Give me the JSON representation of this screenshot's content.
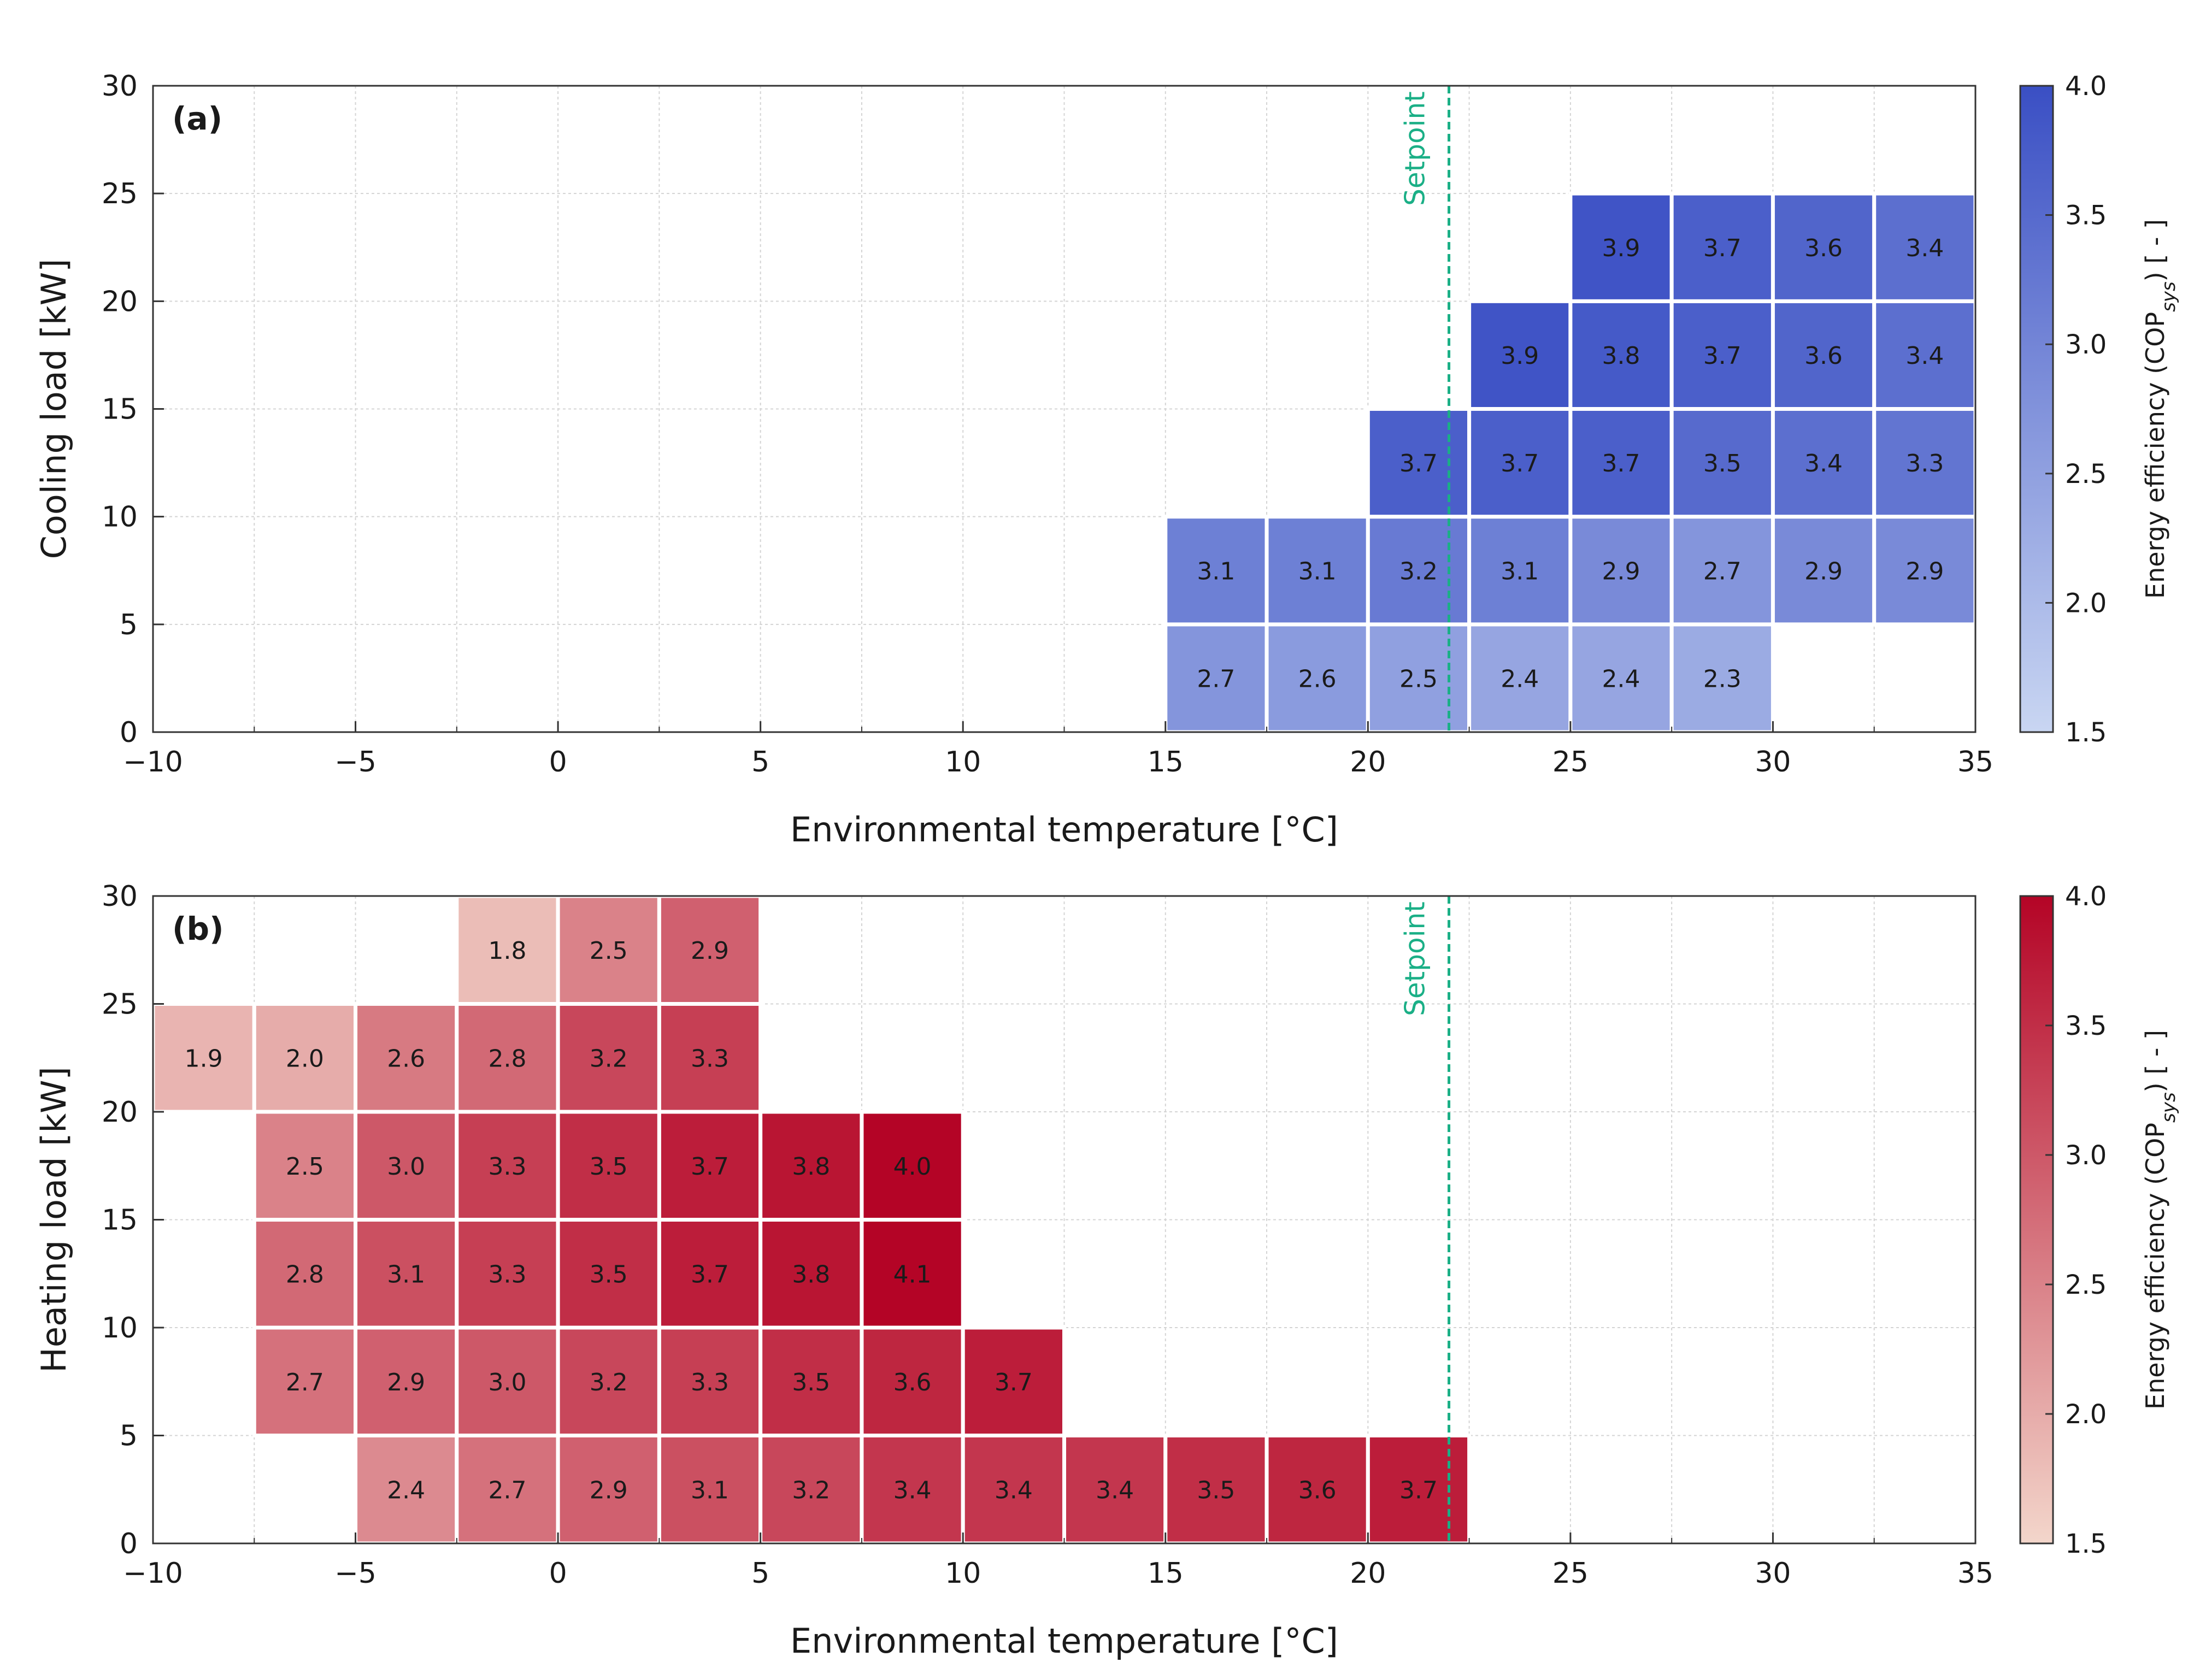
{
  "chart_data": [
    {
      "type": "heatmap",
      "panel_label": "(a)",
      "xlabel": "Environmental temperature [°C]",
      "ylabel": "Cooling load [kW]",
      "xlim": [
        -10,
        35
      ],
      "ylim": [
        0,
        30
      ],
      "xticks": [
        "−10",
        "−5",
        "0",
        "5",
        "10",
        "15",
        "20",
        "25",
        "30",
        "35"
      ],
      "yticks": [
        "0",
        "5",
        "10",
        "15",
        "20",
        "25",
        "30"
      ],
      "bin_width_x": 2.5,
      "bin_height_y": 5,
      "grid": true,
      "setpoint": {
        "x": 22,
        "label": "Setpoint",
        "color": "#1aaf86"
      },
      "colorbar": {
        "title_main": "Energy efficiency (COP",
        "title_sub": "sys",
        "title_end": ") [ - ]",
        "range": [
          1.5,
          4.0
        ],
        "ticks": [
          "1.5",
          "2.0",
          "2.5",
          "3.0",
          "3.5",
          "4.0"
        ],
        "color_low": "#c9d6f2",
        "color_high": "#3a4fc4"
      },
      "cells": [
        {
          "x0": 15,
          "y0": 0,
          "value": "2.7"
        },
        {
          "x0": 17.5,
          "y0": 0,
          "value": "2.6"
        },
        {
          "x0": 20,
          "y0": 0,
          "value": "2.5"
        },
        {
          "x0": 22.5,
          "y0": 0,
          "value": "2.4"
        },
        {
          "x0": 25,
          "y0": 0,
          "value": "2.4"
        },
        {
          "x0": 27.5,
          "y0": 0,
          "value": "2.3"
        },
        {
          "x0": 15,
          "y0": 5,
          "value": "3.1"
        },
        {
          "x0": 17.5,
          "y0": 5,
          "value": "3.1"
        },
        {
          "x0": 20,
          "y0": 5,
          "value": "3.2"
        },
        {
          "x0": 22.5,
          "y0": 5,
          "value": "3.1"
        },
        {
          "x0": 25,
          "y0": 5,
          "value": "2.9"
        },
        {
          "x0": 27.5,
          "y0": 5,
          "value": "2.7"
        },
        {
          "x0": 30,
          "y0": 5,
          "value": "2.9"
        },
        {
          "x0": 32.5,
          "y0": 5,
          "value": "2.9"
        },
        {
          "x0": 20,
          "y0": 10,
          "value": "3.7"
        },
        {
          "x0": 22.5,
          "y0": 10,
          "value": "3.7"
        },
        {
          "x0": 25,
          "y0": 10,
          "value": "3.7"
        },
        {
          "x0": 27.5,
          "y0": 10,
          "value": "3.5"
        },
        {
          "x0": 30,
          "y0": 10,
          "value": "3.4"
        },
        {
          "x0": 32.5,
          "y0": 10,
          "value": "3.3"
        },
        {
          "x0": 22.5,
          "y0": 15,
          "value": "3.9"
        },
        {
          "x0": 25,
          "y0": 15,
          "value": "3.8"
        },
        {
          "x0": 27.5,
          "y0": 15,
          "value": "3.7"
        },
        {
          "x0": 30,
          "y0": 15,
          "value": "3.6"
        },
        {
          "x0": 32.5,
          "y0": 15,
          "value": "3.4"
        },
        {
          "x0": 25,
          "y0": 20,
          "value": "3.9"
        },
        {
          "x0": 27.5,
          "y0": 20,
          "value": "3.7"
        },
        {
          "x0": 30,
          "y0": 20,
          "value": "3.6"
        },
        {
          "x0": 32.5,
          "y0": 20,
          "value": "3.4"
        }
      ]
    },
    {
      "type": "heatmap",
      "panel_label": "(b)",
      "xlabel": "Environmental temperature [°C]",
      "ylabel": "Heating load [kW]",
      "xlim": [
        -10,
        35
      ],
      "ylim": [
        0,
        30
      ],
      "xticks": [
        "−10",
        "−5",
        "0",
        "5",
        "10",
        "15",
        "20",
        "25",
        "30",
        "35"
      ],
      "yticks": [
        "0",
        "5",
        "10",
        "15",
        "20",
        "25",
        "30"
      ],
      "bin_width_x": 2.5,
      "bin_height_y": 5,
      "grid": true,
      "setpoint": {
        "x": 22,
        "label": "Setpoint",
        "color": "#1aaf86"
      },
      "colorbar": {
        "title_main": "Energy efficiency (COP",
        "title_sub": "sys",
        "title_end": ") [ - ]",
        "range": [
          1.5,
          4.0
        ],
        "ticks": [
          "1.5",
          "2.0",
          "2.5",
          "3.0",
          "3.5",
          "4.0"
        ],
        "color_low": "#f3d6cb",
        "color_high": "#b40426"
      },
      "cells": [
        {
          "x0": -5,
          "y0": 0,
          "value": "2.4"
        },
        {
          "x0": -2.5,
          "y0": 0,
          "value": "2.7"
        },
        {
          "x0": 0,
          "y0": 0,
          "value": "2.9"
        },
        {
          "x0": 2.5,
          "y0": 0,
          "value": "3.1"
        },
        {
          "x0": 5,
          "y0": 0,
          "value": "3.2"
        },
        {
          "x0": 7.5,
          "y0": 0,
          "value": "3.4"
        },
        {
          "x0": 10,
          "y0": 0,
          "value": "3.4"
        },
        {
          "x0": 12.5,
          "y0": 0,
          "value": "3.4"
        },
        {
          "x0": 15,
          "y0": 0,
          "value": "3.5"
        },
        {
          "x0": 17.5,
          "y0": 0,
          "value": "3.6"
        },
        {
          "x0": 20,
          "y0": 0,
          "value": "3.7"
        },
        {
          "x0": -7.5,
          "y0": 5,
          "value": "2.7"
        },
        {
          "x0": -5,
          "y0": 5,
          "value": "2.9"
        },
        {
          "x0": -2.5,
          "y0": 5,
          "value": "3.0"
        },
        {
          "x0": 0,
          "y0": 5,
          "value": "3.2"
        },
        {
          "x0": 2.5,
          "y0": 5,
          "value": "3.3"
        },
        {
          "x0": 5,
          "y0": 5,
          "value": "3.5"
        },
        {
          "x0": 7.5,
          "y0": 5,
          "value": "3.6"
        },
        {
          "x0": 10,
          "y0": 5,
          "value": "3.7"
        },
        {
          "x0": -7.5,
          "y0": 10,
          "value": "2.8"
        },
        {
          "x0": -5,
          "y0": 10,
          "value": "3.1"
        },
        {
          "x0": -2.5,
          "y0": 10,
          "value": "3.3"
        },
        {
          "x0": 0,
          "y0": 10,
          "value": "3.5"
        },
        {
          "x0": 2.5,
          "y0": 10,
          "value": "3.7"
        },
        {
          "x0": 5,
          "y0": 10,
          "value": "3.8"
        },
        {
          "x0": 7.5,
          "y0": 10,
          "value": "4.1"
        },
        {
          "x0": -7.5,
          "y0": 15,
          "value": "2.5"
        },
        {
          "x0": -5,
          "y0": 15,
          "value": "3.0"
        },
        {
          "x0": -2.5,
          "y0": 15,
          "value": "3.3"
        },
        {
          "x0": 0,
          "y0": 15,
          "value": "3.5"
        },
        {
          "x0": 2.5,
          "y0": 15,
          "value": "3.7"
        },
        {
          "x0": 5,
          "y0": 15,
          "value": "3.8"
        },
        {
          "x0": 7.5,
          "y0": 15,
          "value": "4.0"
        },
        {
          "x0": -10,
          "y0": 20,
          "value": "1.9"
        },
        {
          "x0": -7.5,
          "y0": 20,
          "value": "2.0"
        },
        {
          "x0": -5,
          "y0": 20,
          "value": "2.6"
        },
        {
          "x0": -2.5,
          "y0": 20,
          "value": "2.8"
        },
        {
          "x0": 0,
          "y0": 20,
          "value": "3.2"
        },
        {
          "x0": 2.5,
          "y0": 20,
          "value": "3.3"
        },
        {
          "x0": -2.5,
          "y0": 25,
          "value": "1.8"
        },
        {
          "x0": 0,
          "y0": 25,
          "value": "2.5"
        },
        {
          "x0": 2.5,
          "y0": 25,
          "value": "2.9"
        }
      ]
    }
  ]
}
